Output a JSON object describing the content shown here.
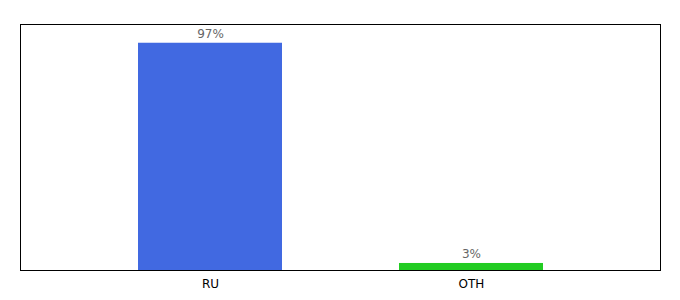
{
  "chart_data": {
    "type": "bar",
    "categories": [
      "RU",
      "OTH"
    ],
    "values": [
      97,
      3
    ],
    "value_labels": [
      "97%",
      "3%"
    ],
    "colors": [
      "#4169E1",
      "#22CC22"
    ],
    "ylim": [
      0,
      105
    ],
    "data_labels": true,
    "tick_labels": "x"
  }
}
